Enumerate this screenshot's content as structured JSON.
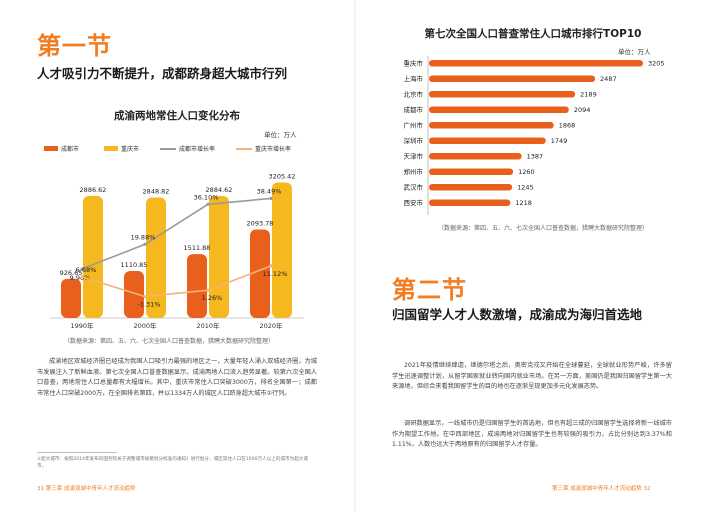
{
  "left": {
    "section_title": "第一节",
    "headline": "人才吸引力不断提升，成都跻身超大城市行列",
    "chart_title": "成渝两地常住人口变化分布",
    "unit": "单位：万人",
    "source": "（数据来源：第四、五、六、七次全国人口普查数据，猎聘大数据研究院整理）",
    "body": "成渝地区双城经济圈已经成为我国人口吸引力最强的地区之一，大量年轻人涌入双城经济圈，为城市发展注入了新鲜血液。第七次全国人口普查数据显示，成渝两地人口流入趋势显著。较第六次全国人口普查，两地常住人口总量都有大幅增长。其中，重庆市常住人口突破3000万，排名全国第一；成都市常住人口突破2000万，在全国排名第四，并以1334万人的城区人口跻身超大城市①行列。",
    "footnote": "①超大城市：按照2014年发布的国务院关于调整城市规模划分标准的通知》进行划分，城区常住人口在1000万人以上的城市为超大城市。",
    "footer": "31   第三章   成渝双城中青年人才流动趋势"
  },
  "right": {
    "rank_title": "第七次全国人口普查常住人口城市排行TOP10",
    "rank_unit": "单位：万人",
    "rank_source": "（数据来源：第四、五、六、七次全国人口普查数据，猎聘大数据研究院整理）",
    "section_title": "第二节",
    "headline": "归国留学人才人数激增，成渝成为海归首选地",
    "body1": "2021年疫情继续肆虐，继德尔塔之后，奥密克戎又开始在全球蔓延，全球就业形势严峻，许多留学生迅速调整计划，从留学国家就业转向国内就业市场。在另一方面，美国仍是我国归国留学生第一大来源地，但综合来看我国留学生的目的地也在逐渐呈现更加多元化发展态势。",
    "body2": "调研数据显示，一线城市仍是归国留学生的首选地，但也有超三成的归国留学生选择将新一线城市作为期望工作地。在中西部地区，成渝两地对归国留学生也有较强的吸引力，占比分别达到3.37%和1.11%，人数也远大于两地原有的归国留学人才存量。",
    "footer": "第三章   成渝双城中青年人才流动趋势   32"
  },
  "colors": {
    "orange": "#f07d22",
    "deep_orange": "#e8601c",
    "yellow": "#f6b81f",
    "gray_line": "#9a9a9a",
    "light_line": "#f5b27a"
  },
  "chart_data": [
    {
      "type": "bar",
      "title": "成渝两地常住人口变化分布",
      "unit": "单位：万人",
      "categories": [
        "1990年",
        "2000年",
        "2010年",
        "2020年"
      ],
      "series": [
        {
          "name": "成都市",
          "values": [
            926.65,
            1110.85,
            1511.88,
            2093.78
          ],
          "labels": [
            "926.65",
            "1110.85",
            "1511.88",
            "2093.78"
          ]
        },
        {
          "name": "重庆市",
          "values": [
            2886.62,
            2848.82,
            2884.62,
            3205.42
          ],
          "labels": [
            "2886.62",
            "2848.82",
            "2884.62",
            "3205.42"
          ]
        }
      ],
      "lines": [
        {
          "name": "成都市增长率",
          "values": [
            9.9,
            19.88,
            36.1,
            38.49
          ],
          "labels": [
            "9.90%",
            "19.88%",
            "36.10%",
            "38.49%"
          ]
        },
        {
          "name": "重庆市增长率",
          "values": [
            6.68,
            -1.31,
            1.26,
            11.12
          ],
          "labels": [
            "6.68%",
            "-1.31%",
            "1.26%",
            "11.12%"
          ]
        }
      ],
      "ylim": [
        0,
        3500
      ],
      "line_ylim": [
        -10,
        50
      ]
    },
    {
      "type": "bar",
      "orientation": "horizontal",
      "title": "第七次全国人口普查常住人口城市排行TOP10",
      "unit": "单位：万人",
      "categories": [
        "重庆市",
        "上海市",
        "北京市",
        "成都市",
        "广州市",
        "深圳市",
        "天津市",
        "郑州市",
        "武汉市",
        "西安市"
      ],
      "values": [
        3205,
        2487,
        2189,
        2094,
        1868,
        1749,
        1387,
        1260,
        1245,
        1218
      ],
      "xlim": [
        0,
        3205
      ]
    }
  ]
}
